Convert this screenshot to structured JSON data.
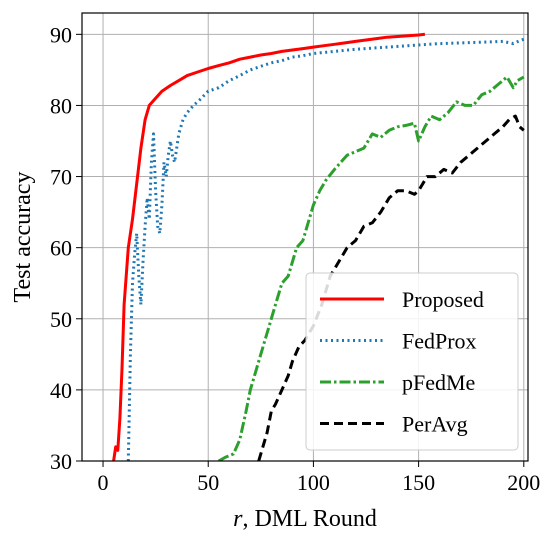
{
  "chart_data": {
    "type": "line",
    "title": "",
    "xlabel": "DML Round",
    "xlabel_var": "r",
    "xlabel_sep": ", ",
    "ylabel": "Test accuracy",
    "xlim": [
      -10,
      202
    ],
    "ylim": [
      30,
      93
    ],
    "xticks": [
      0,
      50,
      100,
      150,
      200
    ],
    "yticks": [
      30,
      40,
      50,
      60,
      70,
      80,
      90
    ],
    "grid": true,
    "legend_position": "lower-right",
    "series": [
      {
        "name": "Proposed",
        "color": "#ff0000",
        "style": "solid",
        "x": [
          5,
          6,
          7,
          8,
          9,
          10,
          11,
          12,
          14,
          16,
          18,
          20,
          22,
          25,
          28,
          32,
          36,
          40,
          45,
          50,
          55,
          60,
          65,
          70,
          75,
          80,
          85,
          90,
          95,
          100,
          105,
          110,
          115,
          120,
          125,
          130,
          135,
          140,
          145,
          150,
          153
        ],
        "y": [
          30,
          32,
          31.5,
          36,
          43,
          52,
          56,
          60,
          64,
          69,
          74,
          78,
          80,
          81,
          82,
          82.8,
          83.5,
          84.2,
          84.7,
          85.2,
          85.6,
          86,
          86.5,
          86.8,
          87.1,
          87.3,
          87.6,
          87.8,
          88,
          88.2,
          88.4,
          88.6,
          88.8,
          89,
          89.2,
          89.4,
          89.6,
          89.7,
          89.8,
          89.9,
          90
        ]
      },
      {
        "name": "FedProx",
        "color": "#1f77b4",
        "style": "dotted",
        "x": [
          12,
          13,
          14,
          15,
          16,
          17,
          18,
          19,
          20,
          21,
          22,
          23,
          24,
          25,
          26,
          27,
          28,
          29,
          30,
          31,
          32,
          33,
          34,
          36,
          38,
          40,
          43,
          46,
          50,
          55,
          60,
          65,
          70,
          75,
          80,
          85,
          90,
          95,
          100,
          110,
          120,
          130,
          140,
          150,
          160,
          170,
          180,
          190,
          195,
          198,
          200
        ],
        "y": [
          30,
          45,
          55,
          59,
          62,
          56,
          52,
          58,
          63,
          67,
          64,
          72,
          76,
          68,
          63,
          62,
          66,
          72,
          70,
          73,
          75,
          73,
          72,
          76,
          78,
          79,
          80,
          80.8,
          82,
          82.5,
          83.5,
          84.2,
          85,
          85.5,
          86,
          86.3,
          86.8,
          87,
          87.3,
          87.6,
          87.9,
          88.1,
          88.3,
          88.5,
          88.7,
          88.8,
          88.9,
          89,
          88.7,
          89.1,
          89.3
        ]
      },
      {
        "name": "pFedMe",
        "color": "#2ca02c",
        "style": "dashdot",
        "x": [
          55,
          58,
          62,
          65,
          68,
          70,
          72,
          75,
          78,
          80,
          82,
          85,
          88,
          90,
          92,
          95,
          98,
          100,
          103,
          106,
          110,
          113,
          116,
          120,
          124,
          128,
          132,
          136,
          140,
          144,
          148,
          150,
          153,
          156,
          160,
          164,
          168,
          172,
          176,
          180,
          184,
          188,
          192,
          195,
          197,
          200
        ],
        "y": [
          30,
          30.5,
          31,
          33,
          37,
          40,
          42,
          45,
          48,
          50,
          52,
          55,
          56,
          58,
          60,
          61,
          64,
          66,
          68,
          69.5,
          71,
          72,
          73,
          73.5,
          74,
          76,
          75.5,
          76.5,
          77,
          77.2,
          77.5,
          75,
          77,
          78.5,
          78,
          79,
          80.5,
          80,
          80,
          81.5,
          82,
          83,
          84,
          82.5,
          83.5,
          84
        ]
      },
      {
        "name": "PerAvg",
        "color": "#000000",
        "style": "dashed",
        "x": [
          74,
          76,
          78,
          80,
          82,
          85,
          88,
          90,
          93,
          96,
          100,
          104,
          108,
          112,
          116,
          120,
          124,
          128,
          132,
          136,
          140,
          144,
          148,
          150,
          154,
          158,
          162,
          166,
          170,
          174,
          178,
          182,
          186,
          190,
          193,
          196,
          198,
          200
        ],
        "y": [
          30,
          32,
          34,
          37,
          38,
          40,
          42,
          44,
          46,
          47,
          49,
          52,
          56,
          58,
          60,
          61,
          63,
          63.5,
          65,
          67,
          68,
          68,
          67.5,
          68,
          70,
          70,
          71,
          70.5,
          72,
          73,
          74,
          75,
          76,
          77,
          78,
          78.5,
          77,
          76.5
        ]
      }
    ]
  }
}
